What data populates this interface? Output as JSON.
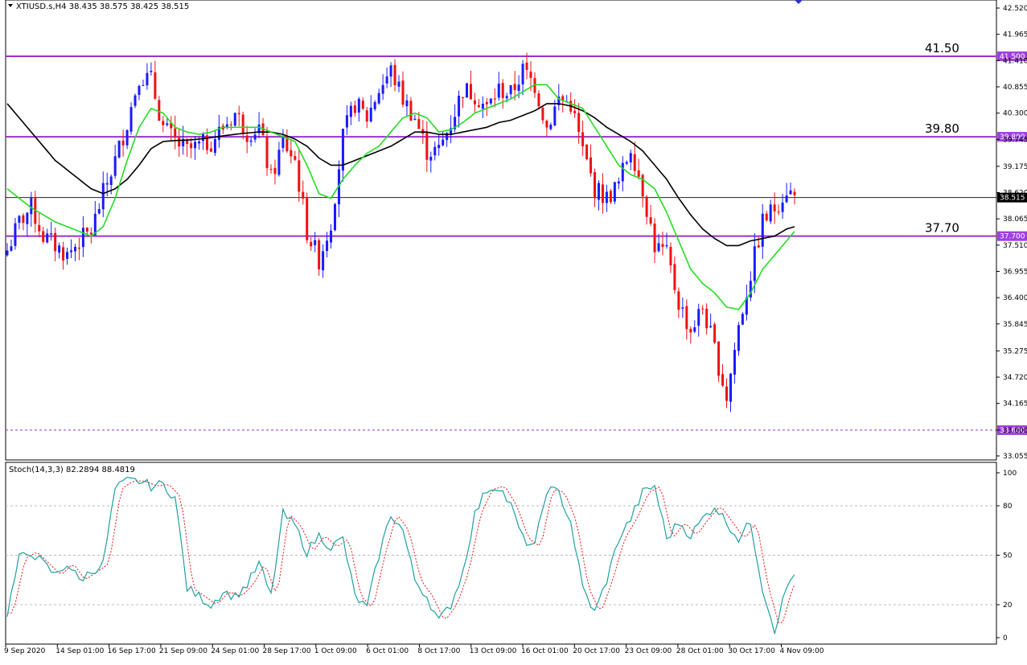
{
  "chart_data": [
    {
      "type": "candlestick",
      "symbol_info": "XTIUSD.s,H4  38.435 38.575 38.425 38.515",
      "colors": {
        "bull": "#1a1aff",
        "bear": "#ee1111",
        "ma_fast": "#22dd22",
        "ma_slow": "#000000",
        "level_line": "#9933cc",
        "price_tag_bg": "#a040e0",
        "current_tag_bg": "#000000",
        "dashed_support": "#9933cc"
      },
      "ylim": [
        33.055,
        42.52
      ],
      "y_ticks": [
        "42.520",
        "41.965",
        "41.410",
        "40.855",
        "40.300",
        "39.745",
        "39.175",
        "38.620",
        "38.065",
        "37.510",
        "36.955",
        "36.400",
        "35.845",
        "35.275",
        "34.720",
        "34.165",
        "33.600",
        "33.055"
      ],
      "x_labels": [
        "9 Sep 2020",
        "14 Sep 01:00",
        "16 Sep 17:00",
        "21 Sep 09:00",
        "24 Sep 01:00",
        "28 Sep 17:00",
        "1 Oct 09:00",
        "6 Oct 01:00",
        "8 Oct 17:00",
        "13 Oct 09:00",
        "16 Oct 01:00",
        "20 Oct 17:00",
        "23 Oct 09:00",
        "28 Oct 01:00",
        "30 Oct 17:00",
        "4 Nov 09:00"
      ],
      "levels": [
        {
          "label": "41.50",
          "tag": "41.500",
          "value": 41.5
        },
        {
          "label": "39.80",
          "tag": "39.800",
          "value": 39.8
        },
        {
          "label": "37.70",
          "tag": "37.700",
          "value": 37.7
        }
      ],
      "current_price": {
        "tag": "38.515",
        "value": 38.515
      },
      "support_line": {
        "tag": "33.600",
        "value": 33.6
      },
      "close_path": [
        [
          0,
          37.4
        ],
        [
          3,
          38.0
        ],
        [
          6,
          38.3
        ],
        [
          9,
          37.7
        ],
        [
          12,
          37.5
        ],
        [
          15,
          37.3
        ],
        [
          18,
          37.6
        ],
        [
          21,
          37.8
        ],
        [
          24,
          38.6
        ],
        [
          27,
          39.3
        ],
        [
          30,
          40.1
        ],
        [
          33,
          41.1
        ],
        [
          36,
          41.0
        ],
        [
          39,
          40.0
        ],
        [
          42,
          39.7
        ],
        [
          45,
          39.5
        ],
        [
          48,
          39.6
        ],
        [
          51,
          39.7
        ],
        [
          54,
          40.0
        ],
        [
          57,
          40.3
        ],
        [
          60,
          39.9
        ],
        [
          63,
          40.0
        ],
        [
          66,
          38.9
        ],
        [
          69,
          39.7
        ],
        [
          72,
          39.3
        ],
        [
          75,
          37.8
        ],
        [
          78,
          37.2
        ],
        [
          81,
          38.0
        ],
        [
          84,
          39.8
        ],
        [
          87,
          40.5
        ],
        [
          90,
          40.2
        ],
        [
          93,
          40.8
        ],
        [
          96,
          41.2
        ],
        [
          99,
          40.6
        ],
        [
          102,
          40.2
        ],
        [
          105,
          39.5
        ],
        [
          108,
          39.5
        ],
        [
          111,
          40.1
        ],
        [
          114,
          40.8
        ],
        [
          117,
          40.7
        ],
        [
          120,
          40.4
        ],
        [
          123,
          40.8
        ],
        [
          126,
          40.7
        ],
        [
          129,
          41.2
        ],
        [
          132,
          40.9
        ],
        [
          135,
          40.0
        ],
        [
          138,
          40.6
        ],
        [
          141,
          40.5
        ],
        [
          144,
          39.5
        ],
        [
          147,
          38.7
        ],
        [
          150,
          38.5
        ],
        [
          153,
          38.8
        ],
        [
          156,
          39.6
        ],
        [
          159,
          38.7
        ],
        [
          162,
          37.5
        ],
        [
          165,
          37.3
        ],
        [
          168,
          36.3
        ],
        [
          171,
          35.7
        ],
        [
          174,
          36.2
        ],
        [
          177,
          35.3
        ],
        [
          180,
          34.3
        ],
        [
          183,
          35.8
        ],
        [
          186,
          36.9
        ],
        [
          189,
          38.0
        ],
        [
          192,
          38.3
        ],
        [
          195,
          38.7
        ],
        [
          197,
          38.515
        ]
      ],
      "candle_count": 198,
      "ma_fast": [
        [
          0,
          38.7
        ],
        [
          6,
          38.3
        ],
        [
          12,
          38.0
        ],
        [
          18,
          37.8
        ],
        [
          21,
          37.7
        ],
        [
          24,
          37.9
        ],
        [
          27,
          38.5
        ],
        [
          30,
          39.3
        ],
        [
          33,
          40.0
        ],
        [
          36,
          40.4
        ],
        [
          39,
          40.3
        ],
        [
          42,
          40.0
        ],
        [
          45,
          39.9
        ],
        [
          48,
          39.85
        ],
        [
          51,
          39.9
        ],
        [
          54,
          40.0
        ],
        [
          57,
          40.0
        ],
        [
          60,
          40.0
        ],
        [
          63,
          40.0
        ],
        [
          66,
          39.9
        ],
        [
          69,
          39.8
        ],
        [
          72,
          39.7
        ],
        [
          75,
          39.2
        ],
        [
          78,
          38.6
        ],
        [
          81,
          38.5
        ],
        [
          84,
          38.9
        ],
        [
          87,
          39.2
        ],
        [
          90,
          39.45
        ],
        [
          93,
          39.6
        ],
        [
          96,
          39.9
        ],
        [
          99,
          40.2
        ],
        [
          102,
          40.3
        ],
        [
          105,
          40.2
        ],
        [
          108,
          39.9
        ],
        [
          111,
          39.95
        ],
        [
          114,
          40.1
        ],
        [
          117,
          40.3
        ],
        [
          120,
          40.4
        ],
        [
          123,
          40.5
        ],
        [
          126,
          40.6
        ],
        [
          129,
          40.75
        ],
        [
          132,
          40.9
        ],
        [
          135,
          40.9
        ],
        [
          138,
          40.6
        ],
        [
          141,
          40.5
        ],
        [
          144,
          40.4
        ],
        [
          147,
          40.0
        ],
        [
          150,
          39.6
        ],
        [
          153,
          39.2
        ],
        [
          156,
          39.0
        ],
        [
          159,
          38.9
        ],
        [
          162,
          38.7
        ],
        [
          165,
          38.2
        ],
        [
          168,
          37.6
        ],
        [
          171,
          37.0
        ],
        [
          174,
          36.7
        ],
        [
          177,
          36.5
        ],
        [
          180,
          36.2
        ],
        [
          183,
          36.15
        ],
        [
          186,
          36.5
        ],
        [
          189,
          37.0
        ],
        [
          192,
          37.3
        ],
        [
          195,
          37.6
        ],
        [
          197,
          37.8
        ]
      ],
      "ma_slow": [
        [
          0,
          40.5
        ],
        [
          6,
          39.9
        ],
        [
          12,
          39.3
        ],
        [
          18,
          38.9
        ],
        [
          21,
          38.7
        ],
        [
          24,
          38.6
        ],
        [
          27,
          38.7
        ],
        [
          30,
          38.9
        ],
        [
          33,
          39.2
        ],
        [
          36,
          39.55
        ],
        [
          39,
          39.7
        ],
        [
          42,
          39.72
        ],
        [
          45,
          39.73
        ],
        [
          48,
          39.75
        ],
        [
          51,
          39.78
        ],
        [
          54,
          39.82
        ],
        [
          57,
          39.85
        ],
        [
          60,
          39.88
        ],
        [
          63,
          39.9
        ],
        [
          66,
          39.9
        ],
        [
          69,
          39.85
        ],
        [
          72,
          39.75
        ],
        [
          75,
          39.6
        ],
        [
          78,
          39.35
        ],
        [
          81,
          39.2
        ],
        [
          84,
          39.2
        ],
        [
          87,
          39.3
        ],
        [
          90,
          39.4
        ],
        [
          93,
          39.5
        ],
        [
          96,
          39.6
        ],
        [
          99,
          39.75
        ],
        [
          102,
          39.9
        ],
        [
          105,
          39.9
        ],
        [
          108,
          39.85
        ],
        [
          111,
          39.85
        ],
        [
          114,
          39.9
        ],
        [
          117,
          39.95
        ],
        [
          120,
          40.0
        ],
        [
          123,
          40.1
        ],
        [
          126,
          40.15
        ],
        [
          129,
          40.25
        ],
        [
          132,
          40.35
        ],
        [
          135,
          40.5
        ],
        [
          138,
          40.5
        ],
        [
          141,
          40.45
        ],
        [
          144,
          40.35
        ],
        [
          147,
          40.2
        ],
        [
          150,
          40.0
        ],
        [
          153,
          39.85
        ],
        [
          156,
          39.7
        ],
        [
          159,
          39.5
        ],
        [
          162,
          39.2
        ],
        [
          165,
          38.9
        ],
        [
          168,
          38.5
        ],
        [
          171,
          38.15
        ],
        [
          174,
          37.85
        ],
        [
          177,
          37.65
        ],
        [
          180,
          37.5
        ],
        [
          183,
          37.5
        ],
        [
          186,
          37.6
        ],
        [
          189,
          37.65
        ],
        [
          192,
          37.7
        ],
        [
          195,
          37.85
        ],
        [
          197,
          37.9
        ]
      ]
    },
    {
      "type": "line",
      "title": "Stoch(14,3,3) 82.2894 88.4819",
      "ylim": [
        0,
        100
      ],
      "y_ticks": [
        "100",
        "80",
        "50",
        "20",
        "0"
      ],
      "levels": [
        80,
        50,
        20
      ],
      "colors": {
        "main": "#20a0a0",
        "signal": "#ee1111"
      },
      "series": [
        {
          "values": [
            [
              0,
              15
            ],
            [
              3,
              48
            ],
            [
              6,
              52
            ],
            [
              9,
              45
            ],
            [
              12,
              38
            ],
            [
              15,
              45
            ],
            [
              18,
              35
            ],
            [
              21,
              40
            ],
            [
              24,
              45
            ],
            [
              27,
              90
            ],
            [
              30,
              95
            ],
            [
              33,
              95
            ],
            [
              36,
              92
            ],
            [
              39,
              93
            ],
            [
              42,
              85
            ],
            [
              45,
              30
            ],
            [
              48,
              25
            ],
            [
              51,
              20
            ],
            [
              54,
              28
            ],
            [
              57,
              25
            ],
            [
              60,
              32
            ],
            [
              63,
              45
            ],
            [
              66,
              25
            ],
            [
              69,
              75
            ],
            [
              72,
              68
            ],
            [
              75,
              52
            ],
            [
              78,
              62
            ],
            [
              81,
              55
            ],
            [
              84,
              60
            ],
            [
              87,
              25
            ],
            [
              90,
              18
            ],
            [
              93,
              50
            ],
            [
              96,
              75
            ],
            [
              99,
              65
            ],
            [
              102,
              35
            ],
            [
              105,
              25
            ],
            [
              108,
              10
            ],
            [
              111,
              20
            ],
            [
              114,
              40
            ],
            [
              117,
              75
            ],
            [
              120,
              90
            ],
            [
              123,
              92
            ],
            [
              126,
              80
            ],
            [
              129,
              60
            ],
            [
              132,
              55
            ],
            [
              135,
              90
            ],
            [
              138,
              88
            ],
            [
              141,
              70
            ],
            [
              144,
              30
            ],
            [
              147,
              15
            ],
            [
              150,
              35
            ],
            [
              153,
              60
            ],
            [
              156,
              72
            ],
            [
              159,
              88
            ],
            [
              162,
              92
            ],
            [
              165,
              60
            ],
            [
              168,
              70
            ],
            [
              171,
              62
            ],
            [
              174,
              72
            ],
            [
              177,
              80
            ],
            [
              180,
              70
            ],
            [
              183,
              60
            ],
            [
              186,
              70
            ],
            [
              189,
              30
            ],
            [
              192,
              5
            ],
            [
              195,
              30
            ],
            [
              198,
              45
            ]
          ]
        }
      ]
    }
  ]
}
